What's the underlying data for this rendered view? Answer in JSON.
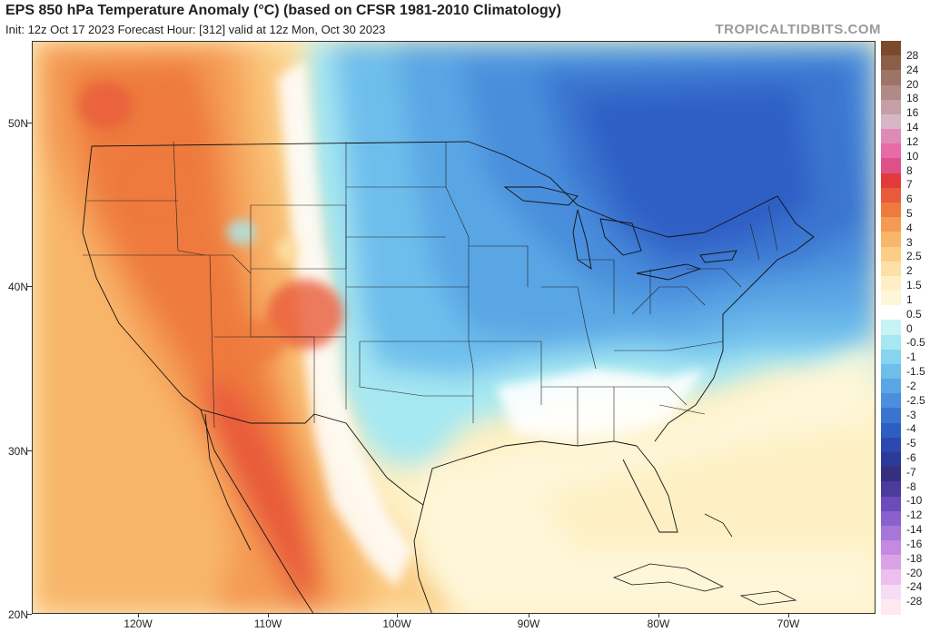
{
  "header": {
    "title": "EPS 850 hPa Temperature Anomaly (°C) (based on CFSR 1981-2010 Climatology)",
    "subtitle": "Init: 12z Oct 17 2023   Forecast Hour: [312]   valid at 12z Mon, Oct 30 2023",
    "brand": "TROPICALTIDBITS.COM"
  },
  "map": {
    "lat_labels": [
      "50N",
      "40N",
      "30N",
      "20N"
    ],
    "lon_labels": [
      "120W",
      "110W",
      "100W",
      "90W",
      "80W",
      "70W"
    ],
    "extent": {
      "west": -127.5,
      "east": -63.3,
      "north": 55,
      "south": 20
    },
    "anomaly_regions": [
      {
        "name": "west-warm",
        "anomaly_c": 3
      },
      {
        "name": "southwest-peak",
        "anomaly_c": 4
      },
      {
        "name": "great-lakes-cold",
        "anomaly_c": -3
      },
      {
        "name": "northeast-cold",
        "anomaly_c": -2.5
      },
      {
        "name": "gulf-warm",
        "anomaly_c": 1
      }
    ]
  },
  "colorbar": {
    "labels": [
      "28",
      "24",
      "20",
      "18",
      "16",
      "14",
      "12",
      "10",
      "8",
      "7",
      "6",
      "5",
      "4",
      "3",
      "2.5",
      "2",
      "1.5",
      "1",
      "0.5",
      "0",
      "-0.5",
      "-1",
      "-1.5",
      "-2",
      "-2.5",
      "-3",
      "-4",
      "-5",
      "-6",
      "-7",
      "-8",
      "-10",
      "-12",
      "-14",
      "-16",
      "-18",
      "-20",
      "-24",
      "-28"
    ],
    "colors": [
      "#7a4a2a",
      "#8c5e48",
      "#9e7466",
      "#b08a86",
      "#c4a0a6",
      "#d8b6c6",
      "#e08ab8",
      "#e86aa6",
      "#e05088",
      "#e23a3a",
      "#e85a3a",
      "#ee7a3e",
      "#f49a52",
      "#f8b66a",
      "#fbcd86",
      "#fde0a6",
      "#fef0c4",
      "#fdf6d8",
      "#ffffff",
      "#c8f2f4",
      "#a6e8f2",
      "#86d4f0",
      "#6ebeec",
      "#5aa6e4",
      "#4a8edc",
      "#3a74d0",
      "#2e5ec4",
      "#2a48b0",
      "#2c3a98",
      "#34307e",
      "#4c3a9c",
      "#6a4cba",
      "#8a60cc",
      "#a676d8",
      "#c48ae0",
      "#dca2e8",
      "#ecc0ee",
      "#f6dcf4",
      "#ffe8f0"
    ]
  }
}
